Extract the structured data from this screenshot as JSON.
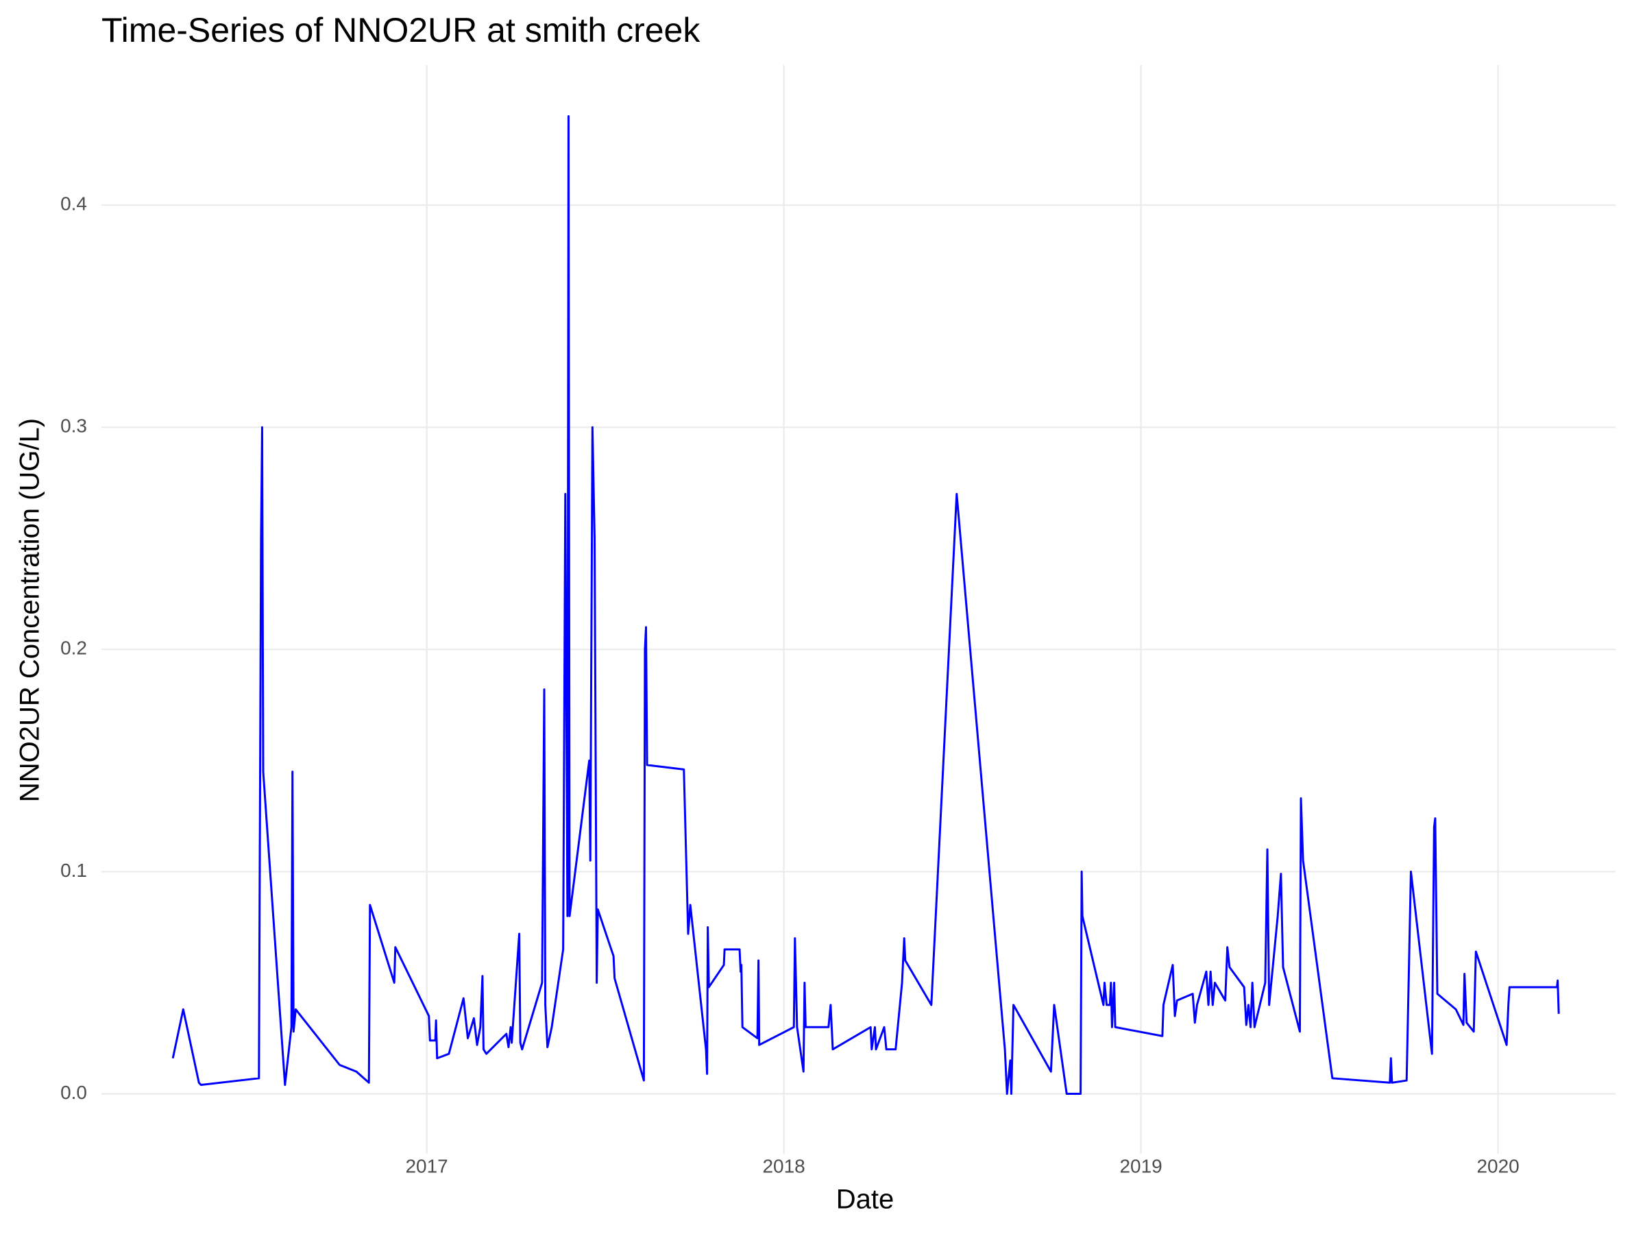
{
  "chart_data": {
    "type": "line",
    "title": "Time-Series of NNO2UR at smith creek",
    "x_label": "Date",
    "y_label": "NNO2UR Concentration (UG/L)",
    "color": "#0000ff",
    "grid": true,
    "xlim": [
      2016.089,
      2020.329
    ],
    "ylim": [
      -0.027,
      0.463
    ],
    "xticks": [
      2017,
      2018,
      2019,
      2020
    ],
    "yticks": [
      {
        "value": 0,
        "label": "0.0"
      },
      0.1,
      0.2,
      0.3,
      0.4
    ],
    "x": [
      2016.289,
      2016.318,
      2016.362,
      2016.368,
      2016.53,
      2016.536,
      2016.539,
      2016.542,
      2016.603,
      2016.621,
      2016.624,
      2016.627,
      2016.633,
      2016.756,
      2016.803,
      2016.838,
      2016.841,
      2016.909,
      2016.912,
      2017.006,
      2017.009,
      2017.024,
      2017.026,
      2017.029,
      2017.062,
      2017.103,
      2017.115,
      2017.132,
      2017.141,
      2017.15,
      2017.156,
      2017.159,
      2017.167,
      2017.223,
      2017.229,
      2017.235,
      2017.238,
      2017.259,
      2017.262,
      2017.267,
      2017.323,
      2017.329,
      2017.332,
      2017.338,
      2017.35,
      2017.382,
      2017.388,
      2017.394,
      2017.397,
      2017.4,
      2017.455,
      2017.458,
      2017.464,
      2017.47,
      2017.476,
      2017.479,
      2017.523,
      2017.526,
      2017.608,
      2017.611,
      2017.614,
      2017.617,
      2017.72,
      2017.732,
      2017.738,
      2017.782,
      2017.785,
      2017.787,
      2017.79,
      2017.832,
      2017.834,
      2017.876,
      2017.879,
      2017.881,
      2017.884,
      2017.926,
      2017.929,
      2017.931,
      2018.028,
      2018.031,
      2018.037,
      2018.055,
      2018.058,
      2018.061,
      2018.125,
      2018.131,
      2018.137,
      2018.243,
      2018.246,
      2018.255,
      2018.258,
      2018.281,
      2018.287,
      2018.313,
      2018.319,
      2018.331,
      2018.337,
      2018.34,
      2018.413,
      2018.484,
      2018.619,
      2018.625,
      2018.634,
      2018.637,
      2018.643,
      2018.748,
      2018.757,
      2018.792,
      2018.831,
      2018.834,
      2018.836,
      2018.895,
      2018.898,
      2018.904,
      2018.913,
      2018.916,
      2018.919,
      2018.925,
      2018.928,
      2019.06,
      2019.063,
      2019.089,
      2019.095,
      2019.101,
      2019.145,
      2019.151,
      2019.157,
      2019.183,
      2019.189,
      2019.195,
      2019.201,
      2019.207,
      2019.236,
      2019.242,
      2019.248,
      2019.289,
      2019.295,
      2019.301,
      2019.307,
      2019.312,
      2019.318,
      2019.348,
      2019.354,
      2019.359,
      2019.383,
      2019.392,
      2019.398,
      2019.445,
      2019.448,
      2019.454,
      2019.536,
      2019.697,
      2019.7,
      2019.703,
      2019.744,
      2019.756,
      2019.815,
      2019.821,
      2019.824,
      2019.83,
      2019.882,
      2019.903,
      2019.906,
      2019.912,
      2019.932,
      2019.938,
      2020.024,
      2020.029,
      2020.032,
      2020.165,
      2020.167,
      2020.17
    ],
    "values": [
      0.016,
      0.038,
      0.005,
      0.004,
      0.007,
      0.25,
      0.3,
      0.145,
      0.004,
      0.03,
      0.145,
      0.028,
      0.038,
      0.013,
      0.01,
      0.005,
      0.085,
      0.05,
      0.066,
      0.035,
      0.024,
      0.024,
      0.033,
      0.016,
      0.018,
      0.043,
      0.025,
      0.034,
      0.022,
      0.03,
      0.053,
      0.02,
      0.018,
      0.027,
      0.021,
      0.03,
      0.023,
      0.072,
      0.023,
      0.02,
      0.05,
      0.182,
      0.04,
      0.021,
      0.03,
      0.065,
      0.27,
      0.08,
      0.44,
      0.08,
      0.15,
      0.105,
      0.3,
      0.25,
      0.05,
      0.083,
      0.062,
      0.052,
      0.006,
      0.2,
      0.21,
      0.148,
      0.146,
      0.072,
      0.085,
      0.02,
      0.009,
      0.075,
      0.048,
      0.058,
      0.065,
      0.065,
      0.055,
      0.058,
      0.03,
      0.025,
      0.06,
      0.022,
      0.03,
      0.07,
      0.03,
      0.01,
      0.05,
      0.03,
      0.03,
      0.04,
      0.02,
      0.03,
      0.02,
      0.03,
      0.02,
      0.03,
      0.02,
      0.02,
      0.03,
      0.05,
      0.07,
      0.06,
      0.04,
      0.27,
      0.02,
      0.0,
      0.015,
      0.0,
      0.04,
      0.01,
      0.04,
      0.0,
      0.0,
      0.1,
      0.08,
      0.04,
      0.05,
      0.04,
      0.04,
      0.05,
      0.03,
      0.05,
      0.03,
      0.026,
      0.04,
      0.058,
      0.035,
      0.042,
      0.045,
      0.032,
      0.04,
      0.055,
      0.04,
      0.055,
      0.04,
      0.05,
      0.042,
      0.066,
      0.057,
      0.048,
      0.031,
      0.04,
      0.03,
      0.05,
      0.03,
      0.05,
      0.11,
      0.04,
      0.08,
      0.099,
      0.057,
      0.028,
      0.133,
      0.105,
      0.007,
      0.005,
      0.016,
      0.005,
      0.006,
      0.1,
      0.018,
      0.12,
      0.124,
      0.045,
      0.038,
      0.031,
      0.054,
      0.032,
      0.028,
      0.064,
      0.022,
      0.04,
      0.048,
      0.048,
      0.051,
      0.036
    ]
  }
}
